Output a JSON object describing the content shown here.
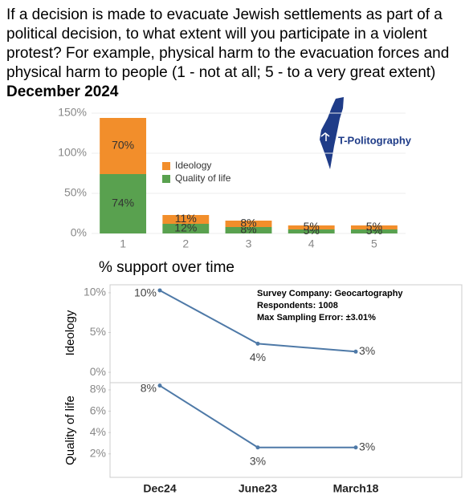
{
  "header": {
    "title": "If a decision is made to evacuate Jewish settlements as part of a political decision, to what extent will you participate in a violent protest? For example, physical harm to the evacuation forces and physical harm to people (1 - not at all; 5 - to a very great extent)",
    "subtitle": "December 2024"
  },
  "logo": "T-Politography",
  "chart_data": [
    {
      "type": "bar",
      "stacked": true,
      "categories": [
        "1",
        "2",
        "3",
        "4",
        "5"
      ],
      "series": [
        {
          "name": "Quality of life",
          "color": "#59a14f",
          "values": [
            74,
            12,
            8,
            5,
            5
          ],
          "value_labels": [
            "74%",
            "12%",
            "8%",
            "5%",
            "5%"
          ]
        },
        {
          "name": "Ideology",
          "color": "#f28e2b",
          "values": [
            70,
            11,
            8,
            5,
            5
          ],
          "value_labels": [
            "70%",
            "11%",
            "8%",
            "5%",
            "5%"
          ]
        }
      ],
      "ylim": [
        0,
        150
      ],
      "yticks": [
        {
          "value": 0,
          "label": "0%"
        },
        {
          "value": 50,
          "label": "50%"
        },
        {
          "value": 100,
          "label": "100%"
        },
        {
          "value": 150,
          "label": "150%"
        }
      ],
      "grid": true
    },
    {
      "type": "line",
      "title": "% support over time",
      "y_label": "Ideology",
      "annotations": [
        "Survey Company: Geocartography",
        "Respondents: 1008",
        "Max Sampling Error: ±3.01%"
      ],
      "categories": [
        "Dec24",
        "June23",
        "March18"
      ],
      "series": [
        {
          "name": "Ideology",
          "color": "#4e79a7",
          "values": [
            10.3,
            3.6,
            2.6
          ],
          "value_labels": [
            "10%",
            "4%",
            "3%"
          ]
        }
      ],
      "ylim": [
        -1.1,
        11
      ],
      "yticks": [
        {
          "value": 0,
          "label": "0%"
        },
        {
          "value": 5,
          "label": "5%"
        },
        {
          "value": 10,
          "label": "10%"
        }
      ]
    },
    {
      "type": "line",
      "y_label": "Quality of life",
      "categories": [
        "Dec24",
        "June23",
        "March18"
      ],
      "series": [
        {
          "name": "Quality of life",
          "color": "#4e79a7",
          "values": [
            8.4,
            2.6,
            2.6
          ],
          "value_labels": [
            "8%",
            "3%",
            "3%"
          ]
        }
      ],
      "ylim": [
        -0.2,
        8.6
      ],
      "yticks": [
        {
          "value": 2,
          "label": "2%"
        },
        {
          "value": 4,
          "label": "4%"
        },
        {
          "value": 6,
          "label": "6%"
        },
        {
          "value": 8,
          "label": "8%"
        }
      ]
    }
  ]
}
